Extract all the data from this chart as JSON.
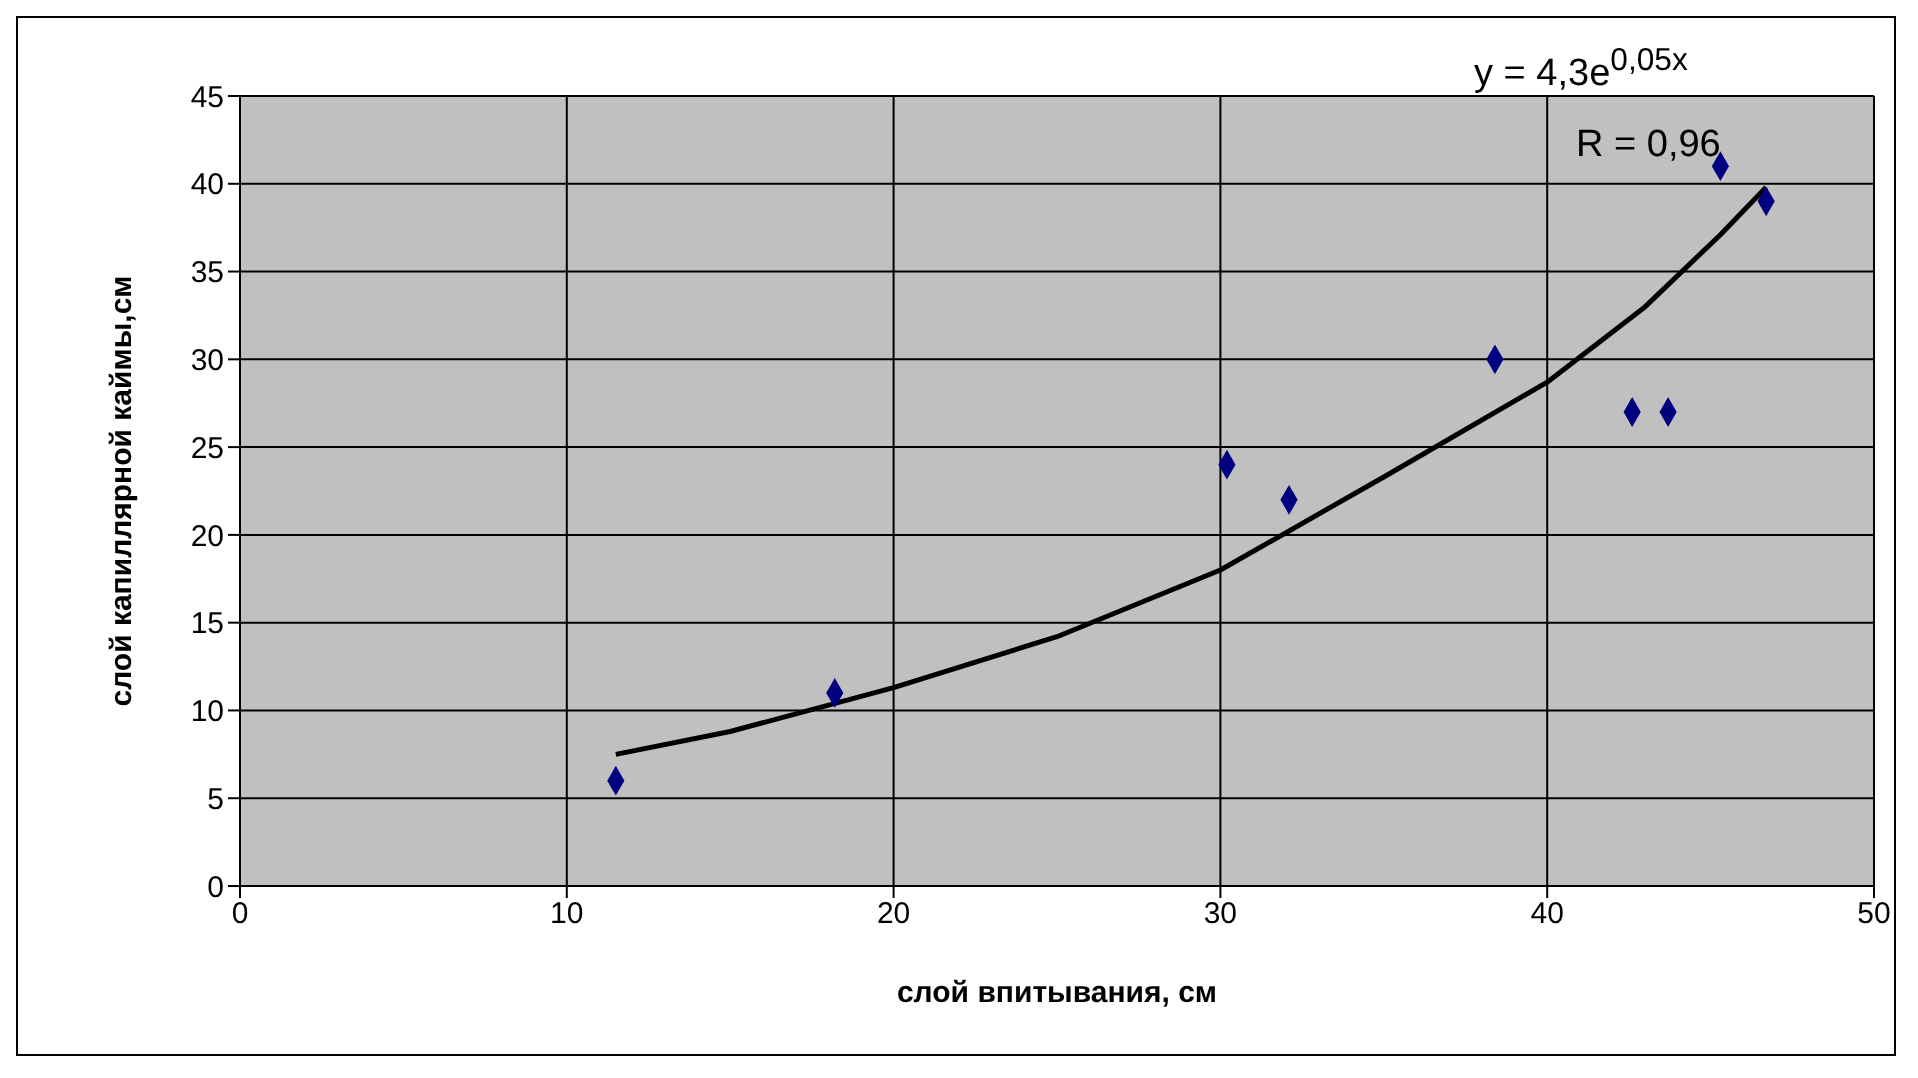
{
  "chart_data": {
    "type": "scatter",
    "xlabel": "слой впитывания, см",
    "ylabel": "слой капиллярной каймы,см",
    "annotations": [
      "y = 4,3e$^{0,05x}$",
      "R = 0,96"
    ],
    "xlim": [
      0,
      50
    ],
    "xticks": [
      0,
      10,
      20,
      30,
      40,
      50
    ],
    "ylim": [
      0,
      45
    ],
    "yticks": [
      0,
      5,
      10,
      15,
      20,
      25,
      30,
      35,
      40,
      45
    ],
    "grid": true,
    "legend": false,
    "marker": "diamond",
    "series": [
      {
        "color": "#000080",
        "x": [
          11.5,
          18.2,
          30.2,
          32.1,
          38.4,
          42.6,
          43.7,
          45.3,
          46.7
        ],
        "values": [
          6,
          11,
          24,
          22,
          30,
          27,
          27,
          41,
          39
        ]
      },
      {
        "type": "line",
        "color": "#000000",
        "marker": "none",
        "line_style": "solid",
        "x": [
          11.5,
          15,
          20,
          25,
          30,
          35,
          40,
          43,
          45.3,
          46.7
        ],
        "values": [
          7.5,
          8.8,
          11.3,
          14.2,
          18,
          23.3,
          28.7,
          33,
          37.1,
          39.8
        ]
      }
    ]
  }
}
